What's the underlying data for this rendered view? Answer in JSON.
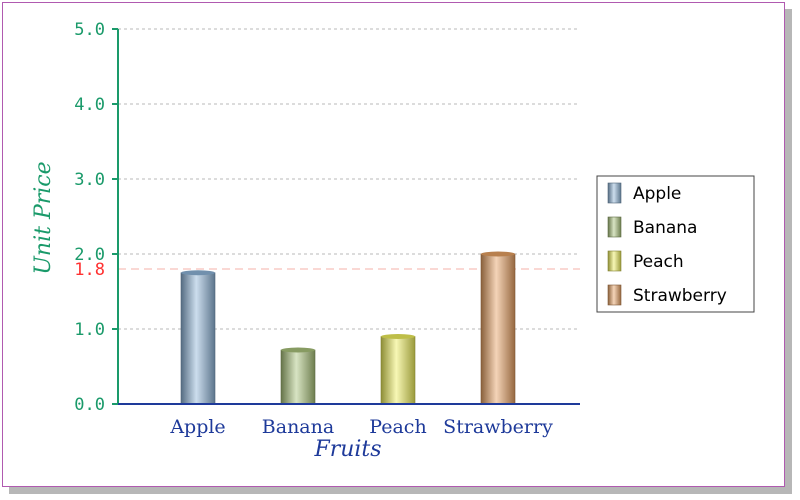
{
  "chart_data": {
    "type": "bar",
    "title": "",
    "xlabel": "Fruits",
    "ylabel": "Unit Price",
    "categories": [
      "Apple",
      "Banana",
      "Peach",
      "Strawberry"
    ],
    "series": [
      {
        "name": "Apple",
        "values": [
          1.75,
          null,
          null,
          null
        ],
        "color": "#8db4d8"
      },
      {
        "name": "Banana",
        "values": [
          null,
          0.72,
          null,
          null
        ],
        "color": "#a9c27a"
      },
      {
        "name": "Peach",
        "values": [
          null,
          null,
          0.9,
          null
        ],
        "color": "#eded5a"
      },
      {
        "name": "Strawberry",
        "values": [
          null,
          null,
          null,
          2.0
        ],
        "color": "#e6a062"
      }
    ],
    "values": [
      1.75,
      0.72,
      0.9,
      2.0
    ],
    "ylim": [
      0,
      5
    ],
    "yticks": [
      "0.0",
      "1.0",
      "2.0",
      "3.0",
      "4.0",
      "5.0"
    ],
    "reference_line": {
      "value": 1.8,
      "label": "1.8",
      "color": "#ff3030"
    },
    "grid": true,
    "legend_position": "right",
    "colors": {
      "y_axis": "#1a9a6a",
      "x_axis": "#1e3a9a",
      "grid": "#b8b8b8",
      "frame": "#b05ab0"
    }
  }
}
